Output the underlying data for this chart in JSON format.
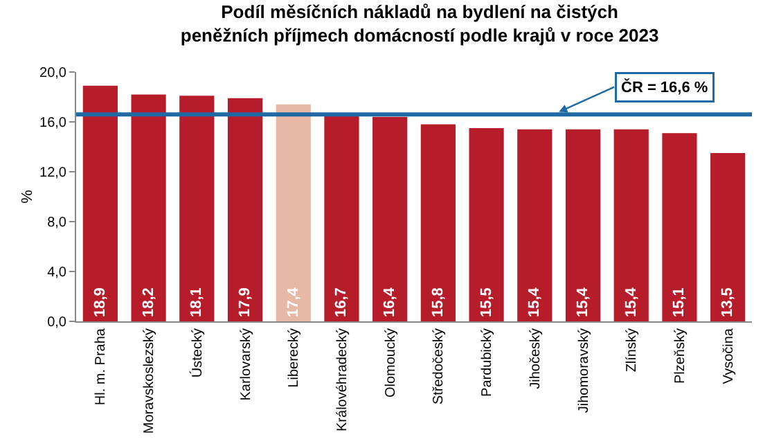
{
  "chart_data": {
    "type": "bar",
    "title": "Podíl měsíčních nákladů na bydlení na čistých peněžních příjmech domácností podle krajů v roce 2023",
    "ylabel": "%",
    "categories": [
      "Hl. m. Praha",
      "Moravskoslezský",
      "Ústecký",
      "Karlovarský",
      "Liberecký",
      "Královéhradecký",
      "Olomoucký",
      "Středočeský",
      "Pardubický",
      "Jihočeský",
      "Jihomoravský",
      "Zlínský",
      "Plzeňský",
      "Vysočina"
    ],
    "values": [
      18.9,
      18.2,
      18.1,
      17.9,
      17.4,
      16.7,
      16.4,
      15.8,
      15.5,
      15.4,
      15.4,
      15.4,
      15.1,
      13.5
    ],
    "value_labels": [
      "18,9",
      "18,2",
      "18,1",
      "17,9",
      "17,4",
      "16,7",
      "16,4",
      "15,8",
      "15,5",
      "15,4",
      "15,4",
      "15,4",
      "15,1",
      "13,5"
    ],
    "colors": [
      "#b71c2a",
      "#b71c2a",
      "#b71c2a",
      "#b71c2a",
      "#e8b8a6",
      "#b71c2a",
      "#b71c2a",
      "#b71c2a",
      "#b71c2a",
      "#b71c2a",
      "#b71c2a",
      "#b71c2a",
      "#b71c2a",
      "#b71c2a"
    ],
    "ylim": [
      0,
      20
    ],
    "yticks": [
      {
        "value": 0,
        "label": "0,0"
      },
      {
        "value": 4,
        "label": "4,0"
      },
      {
        "value": 8,
        "label": "8,0"
      },
      {
        "value": 12,
        "label": "12,0"
      },
      {
        "value": 16,
        "label": "16,0"
      },
      {
        "value": 20,
        "label": "20,0"
      }
    ],
    "grid": false,
    "ref_lines": [
      {
        "axis": "y",
        "value": 16.6,
        "label": "ČR = 16,6 %",
        "color": "#1f6aa5"
      }
    ]
  }
}
